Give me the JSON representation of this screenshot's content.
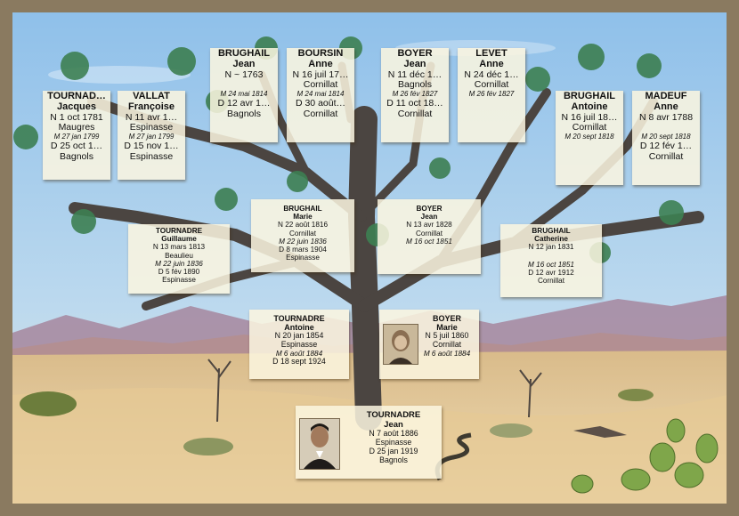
{
  "cards": {
    "c1": {
      "sn": "TOURNAD…",
      "gn": "Jacques",
      "l1": "N 1 oct 1781",
      "l2": "Maugres",
      "l3": "M 27 jan 1799",
      "l4": "D 25 oct 1…",
      "l5": "Bagnols"
    },
    "c2": {
      "sn": "VALLAT",
      "gn": "Françoise",
      "l1": "N 11 avr 1…",
      "l2": "Espinasse",
      "l3": "M 27 jan 1799",
      "l4": "D 15 nov 1…",
      "l5": "Espinasse"
    },
    "c3": {
      "sn": "BRUGHAIL",
      "gn": "Jean",
      "l1": "N ~ 1763",
      "l2": "",
      "l3": "M 24 mai 1814",
      "l4": "D 12 avr 1…",
      "l5": "Bagnols"
    },
    "c4": {
      "sn": "BOURSIN",
      "gn": "Anne",
      "l1": "N 16 juil 17…",
      "l2": "Cornillat",
      "l3": "M 24 mai 1814",
      "l4": "D 30 août…",
      "l5": "Cornillat"
    },
    "c5": {
      "sn": "BOYER",
      "gn": "Jean",
      "l1": "N 11 déc 1…",
      "l2": "Bagnols",
      "l3": "M 26 fév 1827",
      "l4": "D 11 oct 18…",
      "l5": "Cornillat"
    },
    "c6": {
      "sn": "LEVET",
      "gn": "Anne",
      "l1": "N 24 déc 1…",
      "l2": "Cornillat",
      "l3": "M 26 fév 1827",
      "l4": "",
      "l5": ""
    },
    "c7": {
      "sn": "BRUGHAIL",
      "gn": "Antoine",
      "l1": "N 16 juil 18…",
      "l2": "Cornillat",
      "l3": "M 20 sept 1818",
      "l4": "",
      "l5": ""
    },
    "c8": {
      "sn": "MADEUF",
      "gn": "Anne",
      "l1": "N 8 avr 1788",
      "l2": "",
      "l3": "M 20 sept 1818",
      "l4": "D 12 fév 1…",
      "l5": "Cornillat"
    },
    "c9": {
      "sn": "TOURNADRE",
      "gn": "Guillaume",
      "l1": "N 13 mars 1813",
      "l2": "Beaulieu",
      "l3": "M 22 juin 1836",
      "l4": "D 5 fév 1890",
      "l5": "Espinasse"
    },
    "c10": {
      "sn": "BRUGHAIL",
      "gn": "Marie",
      "l1": "N 22 août 1816",
      "l2": "Cornillat",
      "l3": "M 22 juin 1836",
      "l4": "D 8 mars 1904",
      "l5": "Espinasse"
    },
    "c11": {
      "sn": "BOYER",
      "gn": "Jean",
      "l1": "N 13 avr 1828",
      "l2": "Cornillat",
      "l3": "M 16 oct 1851",
      "l4": "",
      "l5": ""
    },
    "c12": {
      "sn": "BRUGHAIL",
      "gn": "Catherine",
      "l1": "N 12 jan 1831",
      "l2": "",
      "l3": "M 16 oct 1851",
      "l4": "D 12 avr 1912",
      "l5": "Cornillat"
    },
    "c13": {
      "sn": "TOURNADRE",
      "gn": "Antoine",
      "l1": "N 20 jan 1854",
      "l2": "Espinasse",
      "l3": "M 6 août 1884",
      "l4": "D 18 sept 1924",
      "l5": ""
    },
    "c14": {
      "sn": "BOYER",
      "gn": "Marie",
      "l1": "N 5 juil 1860",
      "l2": "Cornillat",
      "l3": "M 6 août 1884",
      "l4": "",
      "l5": ""
    },
    "c15": {
      "sn": "TOURNADRE",
      "gn": "Jean",
      "l1": "N 7 août 1886",
      "l2": "Espinasse",
      "l3": "D 25 jan 1919",
      "l4": "Bagnols",
      "l5": ""
    }
  },
  "colors": {
    "sky": "#9cc6e8",
    "sand": "#e9cf9d",
    "mountains": "#9a7fa0",
    "trunk": "#4a4440",
    "frame": "#8a7a60"
  }
}
